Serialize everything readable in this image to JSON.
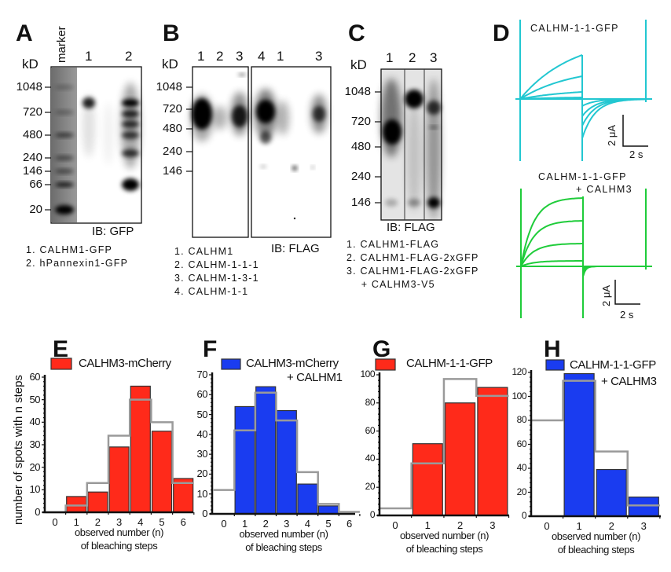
{
  "panels": {
    "A": {
      "letter": "A",
      "kd": "kD",
      "marker": "marker",
      "lanes": [
        "1",
        "2"
      ],
      "ticks": [
        "1048",
        "720",
        "480",
        "240",
        "146",
        "66",
        "20"
      ],
      "ib": "IB: GFP",
      "legend": [
        "1.  CALHM1-GFP",
        "2.  hPannexin1-GFP"
      ]
    },
    "B": {
      "letter": "B",
      "kd": "kD",
      "lanes": [
        "1",
        "2",
        "3",
        "4",
        "1",
        "3"
      ],
      "ticks": [
        "1048",
        "720",
        "480",
        "240",
        "146"
      ],
      "ib": "IB: FLAG",
      "legend": [
        "1. CALHM1",
        "2. CALHM-1-1-1",
        "3. CALHM-1-3-1",
        "4. CALHM-1-1"
      ]
    },
    "C": {
      "letter": "C",
      "kd": "kD",
      "lanes": [
        "1",
        "2",
        "3"
      ],
      "ticks": [
        "1048",
        "720",
        "480",
        "240",
        "146"
      ],
      "ib": "IB: FLAG",
      "legend": [
        "1. CALHM1-FLAG",
        "2. CALHM1-FLAG-2xGFP",
        "3. CALHM1-FLAG-2xGFP",
        "    + CALHM3-V5"
      ]
    },
    "D": {
      "letter": "D",
      "top_label": "CALHM-1-1-GFP",
      "bottom_label_1": "CALHM-1-1-GFP",
      "bottom_label_2": "+ CALHM3",
      "scale_current": "2 μA",
      "scale_time": "2 s",
      "colors": {
        "top": "#22c7d1",
        "bottom": "#1fcc3a"
      }
    }
  },
  "ylabel": "number of spots with n steps",
  "chart_data": [
    {
      "panel": "E",
      "type": "bar",
      "categories": [
        "0",
        "1",
        "2",
        "3",
        "4",
        "5",
        "6"
      ],
      "series": [
        {
          "name": "CALHM3-mCherry",
          "values": [
            0,
            7,
            9,
            29,
            56,
            36,
            15
          ],
          "color": "#ff2a1a"
        },
        {
          "kind": "step-line",
          "values": [
            0,
            3,
            13,
            34,
            50,
            40,
            13
          ],
          "color": "#9a9a9a"
        }
      ],
      "legend": [
        "CALHM3-mCherry"
      ],
      "xlabel": [
        "observed number (n)",
        "of bleaching steps"
      ],
      "ylabel": "number of spots with n steps",
      "yticks": [
        "0",
        "10",
        "20",
        "30",
        "40",
        "50",
        "60"
      ],
      "ylim": [
        0,
        60
      ]
    },
    {
      "panel": "F",
      "type": "bar",
      "categories": [
        "0",
        "1",
        "2",
        "3",
        "4",
        "5",
        "6"
      ],
      "series": [
        {
          "name": "CALHM3-mCherry + CALHM1",
          "values": [
            0,
            54,
            64,
            52,
            15,
            4,
            0
          ],
          "color": "#1a3cf0"
        },
        {
          "kind": "step-line",
          "values": [
            12,
            42,
            61,
            47,
            21,
            5,
            1
          ],
          "color": "#9a9a9a"
        }
      ],
      "legend": [
        "CALHM3-mCherry",
        "+ CALHM1"
      ],
      "xlabel": [
        "observed number (n)",
        "of bleaching steps"
      ],
      "yticks": [
        "0",
        "10",
        "20",
        "30",
        "40",
        "50",
        "60",
        "70"
      ],
      "ylim": [
        0,
        70
      ]
    },
    {
      "panel": "G",
      "type": "bar",
      "categories": [
        "0",
        "1",
        "2",
        "3"
      ],
      "series": [
        {
          "name": "CALHM-1-1-GFP",
          "values": [
            0,
            51,
            80,
            91
          ],
          "color": "#ff2a1a"
        },
        {
          "kind": "step-line",
          "values": [
            5,
            37,
            97,
            85
          ],
          "color": "#9a9a9a"
        }
      ],
      "legend": [
        "CALHM-1-1-GFP"
      ],
      "xlabel": [
        "observed number (n)",
        "of bleaching steps"
      ],
      "yticks": [
        "0",
        "20",
        "40",
        "60",
        "80",
        "100"
      ],
      "ylim": [
        0,
        100
      ]
    },
    {
      "panel": "H",
      "type": "bar",
      "categories": [
        "0",
        "1",
        "2",
        "3"
      ],
      "series": [
        {
          "name": "CALHM-1-1-GFP + CALHM3",
          "values": [
            0,
            119,
            39,
            16
          ],
          "color": "#1a3cf0"
        },
        {
          "kind": "step-line",
          "values": [
            80,
            113,
            54,
            9
          ],
          "color": "#9a9a9a"
        }
      ],
      "legend": [
        "CALHM-1-1-GFP",
        "+ CALHM3"
      ],
      "xlabel": [
        "observed number (n)",
        "of bleaching steps"
      ],
      "yticks": [
        "0",
        "20",
        "40",
        "60",
        "80",
        "100",
        "120"
      ],
      "ylim": [
        0,
        120
      ]
    }
  ]
}
